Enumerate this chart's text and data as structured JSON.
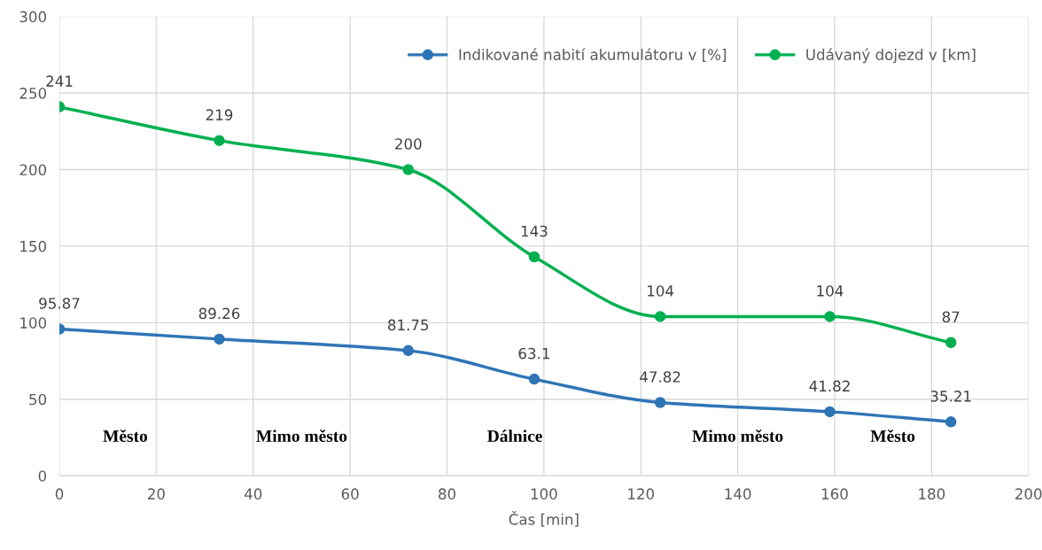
{
  "chart_data": {
    "type": "line",
    "xlabel": "Čas [min]",
    "x": [
      0,
      33,
      72,
      98,
      124,
      159,
      184
    ],
    "series": [
      {
        "name": "Indikované nabití akumulátoru v [%]",
        "color": "#2e75b6",
        "values": [
          95.87,
          89.26,
          81.75,
          63.1,
          47.82,
          41.82,
          35.21
        ]
      },
      {
        "name": "Udávaný dojezd v [km]",
        "color": "#00b050",
        "values": [
          241,
          219,
          200,
          143,
          104,
          104,
          87
        ]
      }
    ],
    "xlim": [
      0,
      200
    ],
    "xticks": [
      0,
      20,
      40,
      60,
      80,
      100,
      120,
      140,
      160,
      180,
      200
    ],
    "ylim": [
      0,
      300
    ],
    "yticks": [
      0,
      50,
      100,
      150,
      200,
      250,
      300
    ],
    "grid": true,
    "legend": "top right",
    "marker": "circle",
    "line_style": "solid",
    "data_labels": true,
    "annotations": [
      "Město",
      "Mimo město",
      "Dálnice",
      "Mimo město",
      "Město"
    ]
  }
}
